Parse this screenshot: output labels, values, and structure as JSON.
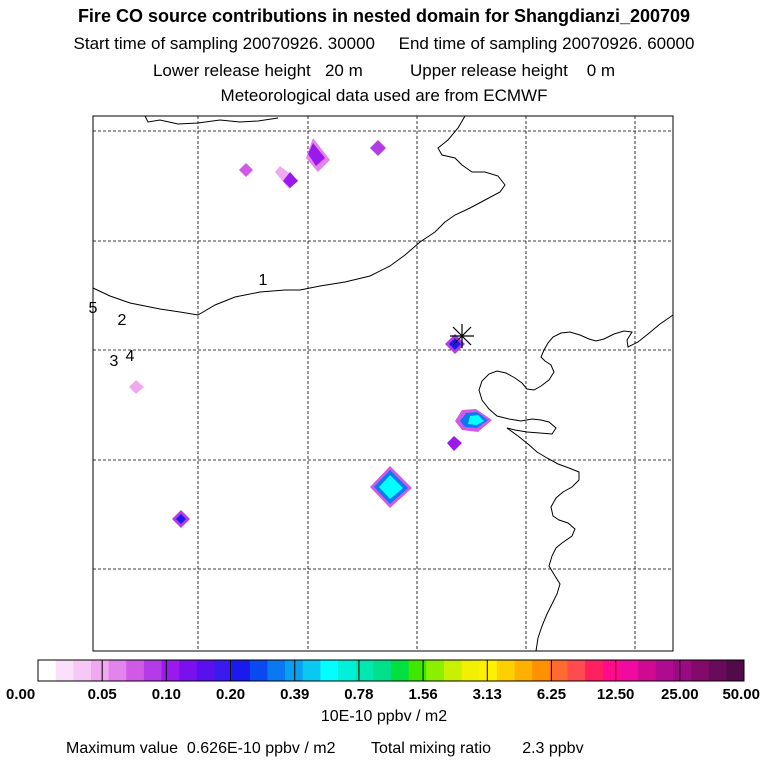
{
  "header": {
    "title": "Fire CO source contributions in nested domain for Shangdianzi_200709",
    "start_label": "Start time of sampling 20070926. 30000",
    "end_label": "End time of sampling 20070926. 60000",
    "lower_label": "Lower release height   20 m",
    "upper_label": "Upper release height    0 m",
    "met_label": "Meteorological data used are from ECMWF"
  },
  "map": {
    "region_labels": [
      "1",
      "2",
      "3",
      "4",
      "5"
    ],
    "receptor_marker": "asterisk"
  },
  "colorbar": {
    "tick_labels": [
      "0.00",
      "0.05",
      "0.10",
      "0.20",
      "0.39",
      "0.78",
      "1.56",
      "3.13",
      "6.25",
      "12.50",
      "25.00",
      "50.00"
    ],
    "colors": [
      "#ffffff",
      "#fae0fa",
      "#f6c8f6",
      "#f0a8f0",
      "#e283ee",
      "#d05ae6",
      "#b43ce6",
      "#9a1aee",
      "#7a10ee",
      "#5a10ee",
      "#3a1aee",
      "#1a1aee",
      "#0a48f0",
      "#0a78f0",
      "#0aa0f0",
      "#0ac8f0",
      "#00ffff",
      "#00f0d8",
      "#00e8b0",
      "#00e08a",
      "#00e040",
      "#40e800",
      "#8af000",
      "#c8f000",
      "#f0f000",
      "#fff000",
      "#ffd000",
      "#ffb000",
      "#ff9000",
      "#ff6a30",
      "#ff4a50",
      "#ff2060",
      "#ff0a8a",
      "#f00aa0",
      "#d00a90",
      "#b00a90",
      "#9a0a80",
      "#820a6a",
      "#6a0a5a",
      "#520a4a"
    ],
    "units": "10E-10 ppbv / m2"
  },
  "footer": {
    "max_value": "Maximum value  0.626E-10 ppbv / m2",
    "total": "Total mixing ratio       2.3 ppbv"
  },
  "chart_data": {
    "type": "heatmap",
    "title": "Fire CO source contributions in nested domain for Shangdianzi_200709",
    "units": "10E-10 ppbv / m2",
    "color_scale_levels": [
      0.0,
      0.05,
      0.1,
      0.2,
      0.39,
      0.78,
      1.56,
      3.13,
      6.25,
      12.5,
      25.0,
      50.0
    ],
    "maximum_value": 0.626,
    "total_mixing_ratio_ppbv": 2.3,
    "grid": true
  }
}
